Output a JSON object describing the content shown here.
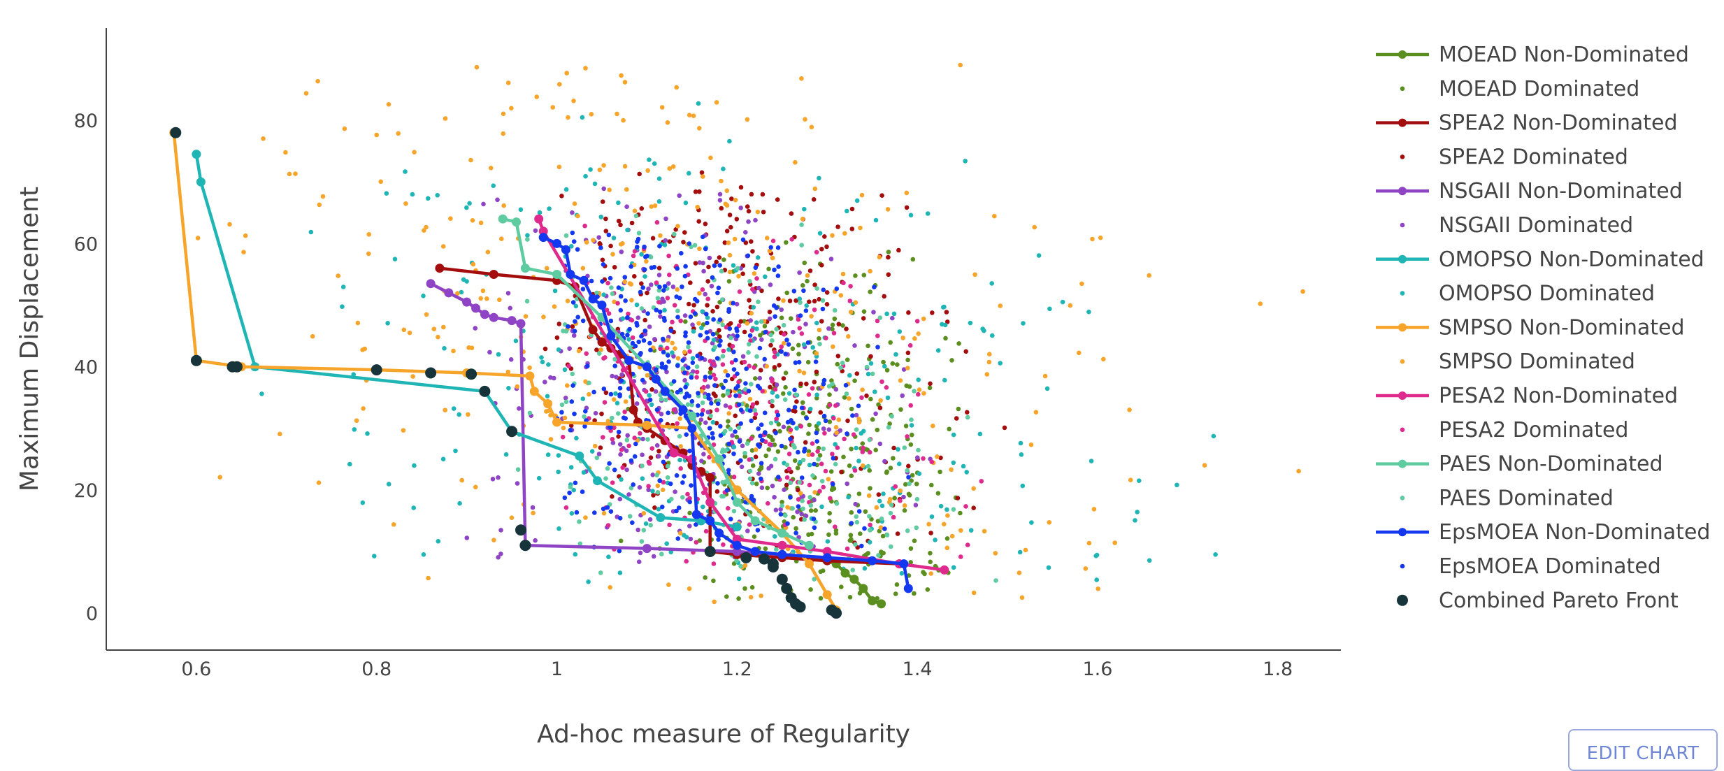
{
  "chart_data": {
    "type": "scatter",
    "xlabel": "Ad-hoc measure of Regularity",
    "ylabel": "Maximum Displacement",
    "xlim": [
      0.5,
      1.87
    ],
    "ylim": [
      -6,
      95
    ],
    "x_ticks": [
      0.6,
      0.8,
      1,
      1.2,
      1.4,
      1.6,
      1.8
    ],
    "x_tick_labels": [
      "0.6",
      "0.8",
      "1",
      "1.2",
      "1.4",
      "1.6",
      "1.8"
    ],
    "y_ticks": [
      0,
      20,
      40,
      60,
      80
    ],
    "y_tick_labels": [
      "0",
      "20",
      "40",
      "60",
      "80"
    ],
    "grid": false,
    "legend_position": "right",
    "series": [
      {
        "name": "MOEAD Non-Dominated",
        "color": "#5a8f1f",
        "mode": "lines+markers",
        "points": [
          [
            1.31,
            8
          ],
          [
            1.32,
            6.5
          ],
          [
            1.33,
            5.5
          ],
          [
            1.34,
            4
          ],
          [
            1.35,
            2
          ],
          [
            1.36,
            1.5
          ]
        ]
      },
      {
        "name": "MOEAD Dominated",
        "color": "#5a8f1f",
        "mode": "markers",
        "cloud": {
          "x": [
            1.05,
            1.45
          ],
          "y": [
            2,
            62
          ],
          "center": [
            1.3,
            20
          ],
          "count": 380
        }
      },
      {
        "name": "SPEA2 Non-Dominated",
        "color": "#a30d0d",
        "mode": "lines+markers",
        "points": [
          [
            0.87,
            56
          ],
          [
            0.93,
            55
          ],
          [
            1.0,
            54
          ],
          [
            1.02,
            53
          ],
          [
            1.04,
            46
          ],
          [
            1.05,
            44
          ],
          [
            1.06,
            43
          ],
          [
            1.07,
            42
          ],
          [
            1.08,
            41
          ],
          [
            1.085,
            33
          ],
          [
            1.09,
            31
          ],
          [
            1.1,
            30
          ],
          [
            1.12,
            28
          ],
          [
            1.14,
            26
          ],
          [
            1.15,
            24
          ],
          [
            1.16,
            23
          ],
          [
            1.17,
            22
          ],
          [
            1.17,
            10
          ],
          [
            1.2,
            9.5
          ],
          [
            1.25,
            9
          ],
          [
            1.3,
            8.5
          ],
          [
            1.38,
            8
          ]
        ]
      },
      {
        "name": "SPEA2 Dominated",
        "color": "#a30d0d",
        "mode": "markers",
        "cloud": {
          "x": [
            0.98,
            1.5
          ],
          "y": [
            10,
            72
          ],
          "center": [
            1.2,
            45
          ],
          "count": 300
        }
      },
      {
        "name": "NSGAII Non-Dominated",
        "color": "#8e44c4",
        "mode": "lines+markers",
        "points": [
          [
            0.86,
            53.5
          ],
          [
            0.88,
            52
          ],
          [
            0.9,
            50.5
          ],
          [
            0.91,
            49.5
          ],
          [
            0.92,
            48.5
          ],
          [
            0.93,
            48
          ],
          [
            0.95,
            47.5
          ],
          [
            0.96,
            47
          ],
          [
            0.965,
            11
          ],
          [
            1.1,
            10.5
          ],
          [
            1.2,
            10
          ],
          [
            1.3,
            9
          ]
        ]
      },
      {
        "name": "NSGAII Dominated",
        "color": "#8e44c4",
        "mode": "markers",
        "cloud": {
          "x": [
            0.9,
            1.45
          ],
          "y": [
            8,
            70
          ],
          "center": [
            1.15,
            35
          ],
          "count": 320
        }
      },
      {
        "name": "OMOPSO Non-Dominated",
        "color": "#1fb5b5",
        "mode": "lines+markers",
        "points": [
          [
            0.6,
            74.5
          ],
          [
            0.605,
            70
          ],
          [
            0.665,
            40
          ],
          [
            0.92,
            36
          ],
          [
            0.95,
            29.5
          ],
          [
            1.025,
            25.5
          ],
          [
            1.045,
            21.5
          ],
          [
            1.115,
            15.5
          ],
          [
            1.16,
            15
          ],
          [
            1.2,
            14
          ]
        ]
      },
      {
        "name": "OMOPSO Dominated",
        "color": "#1fb5b5",
        "mode": "markers",
        "cloud": {
          "x": [
            0.65,
            1.75
          ],
          "y": [
            5,
            85
          ],
          "center": [
            1.2,
            35
          ],
          "count": 340
        }
      },
      {
        "name": "SMPSO Non-Dominated",
        "color": "#f7a42a",
        "mode": "lines+markers",
        "points": [
          [
            0.575,
            78
          ],
          [
            0.6,
            41
          ],
          [
            0.65,
            40
          ],
          [
            0.8,
            39.5
          ],
          [
            0.9,
            39
          ],
          [
            0.97,
            38.5
          ],
          [
            0.975,
            36
          ],
          [
            0.99,
            34
          ],
          [
            1.0,
            31
          ],
          [
            1.1,
            30.5
          ],
          [
            1.15,
            30
          ],
          [
            1.2,
            20
          ],
          [
            1.25,
            13
          ],
          [
            1.28,
            8
          ],
          [
            1.3,
            3
          ],
          [
            1.31,
            0.5
          ]
        ]
      },
      {
        "name": "SMPSO Dominated",
        "color": "#f7a42a",
        "mode": "markers",
        "cloud": {
          "x": [
            0.6,
            1.85
          ],
          "y": [
            1,
            89
          ],
          "center": [
            1.1,
            50
          ],
          "count": 420
        }
      },
      {
        "name": "PESA2 Non-Dominated",
        "color": "#de2a8c",
        "mode": "lines+markers",
        "points": [
          [
            0.98,
            64
          ],
          [
            0.985,
            62
          ],
          [
            1.13,
            26
          ],
          [
            1.15,
            25
          ],
          [
            1.17,
            18
          ],
          [
            1.2,
            12
          ],
          [
            1.25,
            11
          ],
          [
            1.3,
            10
          ],
          [
            1.38,
            8
          ],
          [
            1.43,
            7
          ]
        ]
      },
      {
        "name": "PESA2 Dominated",
        "color": "#de2a8c",
        "mode": "markers",
        "cloud": {
          "x": [
            1.0,
            1.5
          ],
          "y": [
            8,
            65
          ],
          "center": [
            1.2,
            35
          ],
          "count": 260
        }
      },
      {
        "name": "PAES Non-Dominated",
        "color": "#5ecba0",
        "mode": "lines+markers",
        "points": [
          [
            0.94,
            64
          ],
          [
            0.955,
            63.5
          ],
          [
            0.965,
            56
          ],
          [
            1.0,
            55
          ],
          [
            1.05,
            48
          ],
          [
            1.1,
            40
          ],
          [
            1.15,
            32
          ],
          [
            1.18,
            25
          ],
          [
            1.2,
            18
          ],
          [
            1.22,
            15
          ],
          [
            1.25,
            13
          ],
          [
            1.28,
            11
          ]
        ]
      },
      {
        "name": "PAES Dominated",
        "color": "#5ecba0",
        "mode": "markers",
        "cloud": {
          "x": [
            0.95,
            1.5
          ],
          "y": [
            5,
            65
          ],
          "center": [
            1.2,
            28
          ],
          "count": 260
        }
      },
      {
        "name": "EpsMOEA Non-Dominated",
        "color": "#1438f0",
        "mode": "lines+markers",
        "points": [
          [
            0.985,
            61
          ],
          [
            1.0,
            60
          ],
          [
            1.01,
            59
          ],
          [
            1.015,
            55
          ],
          [
            1.03,
            54
          ],
          [
            1.04,
            51
          ],
          [
            1.05,
            50
          ],
          [
            1.06,
            45
          ],
          [
            1.08,
            41
          ],
          [
            1.1,
            40
          ],
          [
            1.11,
            38
          ],
          [
            1.12,
            36
          ],
          [
            1.14,
            33
          ],
          [
            1.15,
            30
          ],
          [
            1.155,
            16
          ],
          [
            1.17,
            15
          ],
          [
            1.18,
            13
          ],
          [
            1.2,
            11
          ],
          [
            1.22,
            10
          ],
          [
            1.25,
            9.5
          ],
          [
            1.3,
            9
          ],
          [
            1.35,
            8.5
          ],
          [
            1.385,
            8
          ],
          [
            1.39,
            4
          ]
        ]
      },
      {
        "name": "EpsMOEA Dominated",
        "color": "#1438f0",
        "mode": "markers",
        "cloud": {
          "x": [
            1.0,
            1.4
          ],
          "y": [
            10,
            62
          ],
          "center": [
            1.15,
            38
          ],
          "count": 420
        }
      },
      {
        "name": "Combined Pareto Front",
        "color": "#17343a",
        "mode": "markers-large",
        "points": [
          [
            0.577,
            78
          ],
          [
            0.6,
            41
          ],
          [
            0.64,
            40
          ],
          [
            0.645,
            40
          ],
          [
            0.8,
            39.5
          ],
          [
            0.86,
            39
          ],
          [
            0.905,
            38.8
          ],
          [
            0.92,
            36
          ],
          [
            0.95,
            29.5
          ],
          [
            0.96,
            13.5
          ],
          [
            0.965,
            11
          ],
          [
            1.17,
            10
          ],
          [
            1.21,
            9
          ],
          [
            1.23,
            8.8
          ],
          [
            1.24,
            8
          ],
          [
            1.24,
            7.5
          ],
          [
            1.25,
            5.5
          ],
          [
            1.255,
            4
          ],
          [
            1.26,
            2.5
          ],
          [
            1.265,
            1.5
          ],
          [
            1.27,
            1
          ],
          [
            1.305,
            0.5
          ],
          [
            1.31,
            0
          ]
        ]
      }
    ]
  },
  "ui": {
    "edit_chart_label": "EDIT CHART"
  }
}
